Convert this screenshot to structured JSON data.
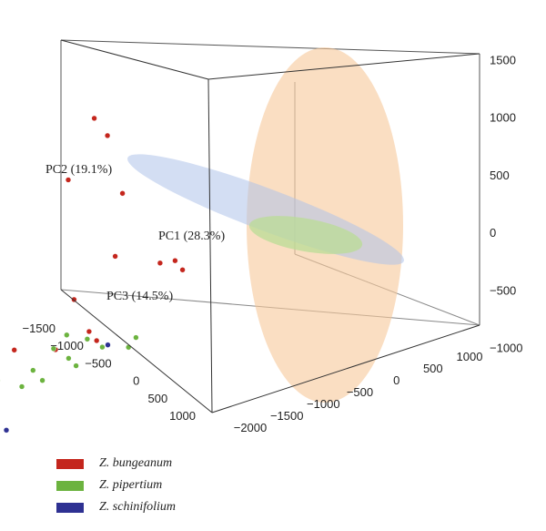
{
  "chart_data": {
    "type": "scatter",
    "subtype": "3d-scatter-with-confidence-ellipsoids",
    "axes": {
      "pc1": {
        "label": "PC1 (28.3%)",
        "range": [
          -2000,
          1000
        ],
        "ticks": [
          "−2000",
          "−1500",
          "−1000",
          "−500",
          "0",
          "500",
          "1000"
        ]
      },
      "pc2": {
        "label": "PC2 (19.1%)",
        "range": [
          -1000,
          1500
        ],
        "ticks": [
          "1500",
          "1000",
          "500",
          "0",
          "−500",
          "−1000"
        ]
      },
      "pc3": {
        "label": "PC3 (14.5%)",
        "range": [
          -1500,
          1000
        ],
        "ticks": [
          "−1500",
          "−1000",
          "−500",
          "0",
          "500",
          "1000"
        ]
      }
    },
    "grid": false,
    "legend_position": "bottom-left",
    "series": [
      {
        "name": "Z. bungeanum",
        "color": "#c4261d",
        "ellipse_color": "#f6c89a",
        "points": [
          [
            -1070,
            1240,
            0
          ],
          [
            -1000,
            1110,
            0
          ],
          [
            -1210,
            940,
            0
          ],
          [
            -920,
            740,
            0
          ],
          [
            -960,
            390,
            0
          ],
          [
            -1180,
            230,
            0
          ],
          [
            -720,
            250,
            0
          ],
          [
            -640,
            230,
            0
          ],
          [
            -600,
            160,
            0
          ],
          [
            -1600,
            90,
            0
          ],
          [
            -1500,
            70,
            0
          ],
          [
            -1100,
            10,
            0
          ],
          [
            -1280,
            -20,
            0
          ],
          [
            -1060,
            -60,
            0
          ],
          [
            -1690,
            -130,
            0
          ]
        ]
      },
      {
        "name": "Z. pipertium",
        "color": "#6cb33f",
        "ellipse_color": "#b9dc95",
        "points": [
          [
            -1920,
            50,
            0
          ],
          [
            -1220,
            40,
            0
          ],
          [
            -1290,
            -10,
            0
          ],
          [
            -1110,
            -30,
            0
          ],
          [
            -1860,
            -30,
            0
          ],
          [
            -1710,
            -60,
            0
          ],
          [
            -1590,
            -70,
            0
          ],
          [
            -1400,
            -90,
            0
          ],
          [
            -1210,
            -100,
            0
          ],
          [
            -1030,
            -110,
            0
          ],
          [
            -1670,
            -130,
            0
          ],
          [
            -1460,
            -160,
            0
          ],
          [
            -1170,
            -160,
            0
          ],
          [
            -1350,
            -170,
            0
          ],
          [
            -850,
            -130,
            0
          ],
          [
            -890,
            -170,
            0
          ]
        ]
      },
      {
        "name": "Z. schinifolium",
        "color": "#2e3192",
        "ellipse_color": "#aec3ea",
        "points": [
          [
            -2000,
            340,
            -1450
          ],
          [
            -2000,
            330,
            -1150
          ],
          [
            -1690,
            170,
            0
          ],
          [
            -1730,
            110,
            0
          ],
          [
            -1780,
            70,
            0
          ],
          [
            -1000,
            -110,
            0
          ]
        ]
      }
    ]
  }
}
